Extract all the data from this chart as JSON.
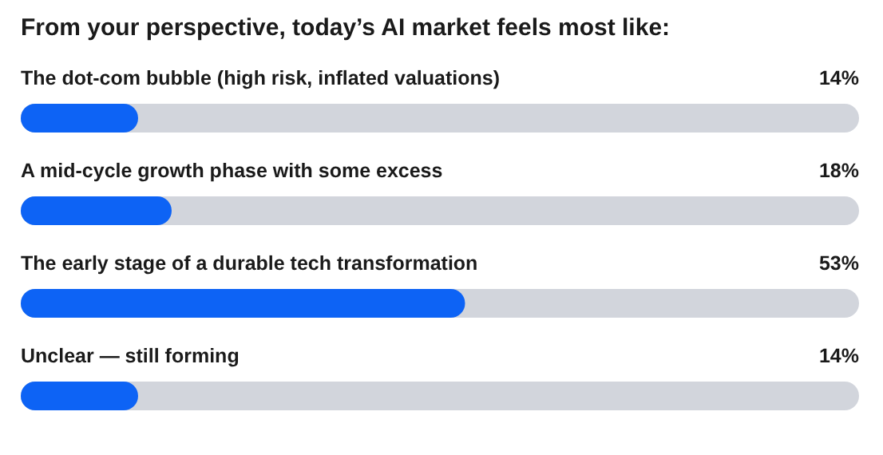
{
  "chart_data": {
    "type": "bar",
    "orientation": "horizontal",
    "title": "From your perspective, today’s AI market feels most like:",
    "categories": [
      "The dot-com bubble (high risk, inflated valuations)",
      "A mid-cycle growth phase with some excess",
      "The early stage of a durable tech transformation",
      "Unclear — still forming"
    ],
    "values": [
      14,
      18,
      53,
      14
    ],
    "value_labels": [
      "14%",
      "18%",
      "53%",
      "14%"
    ],
    "color": "#0d63f5",
    "xlim": [
      0,
      100
    ],
    "tick_labels": false
  }
}
